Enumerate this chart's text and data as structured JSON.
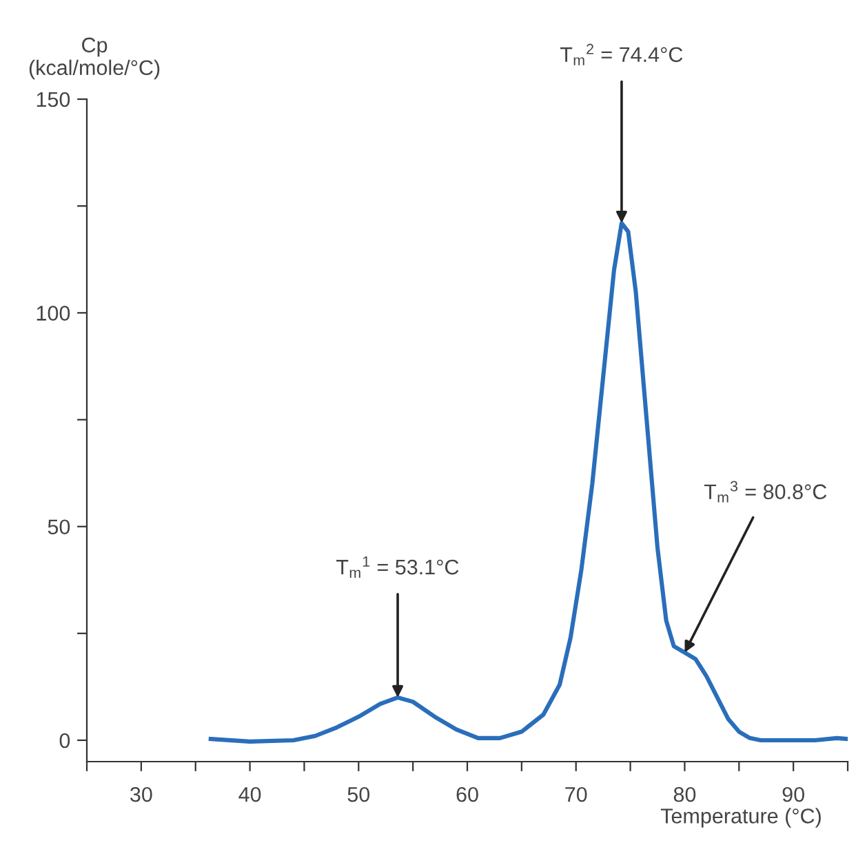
{
  "chart_data": {
    "type": "line",
    "xlabel": "Temperature (°C)",
    "ylabel": "Cp\n(kcal/mole/°C)",
    "x": [
      36.4,
      40,
      44,
      46,
      48,
      50,
      52,
      53.6,
      55,
      57,
      59,
      61,
      63,
      65,
      67,
      68.5,
      69.5,
      70.5,
      71.5,
      72.5,
      73.5,
      74.2,
      74.8,
      75.5,
      76.5,
      77.5,
      78.3,
      79,
      80,
      81,
      82,
      83,
      84,
      85,
      86,
      87,
      88,
      90,
      92,
      94,
      95
    ],
    "series": [
      {
        "color": "#2a6ebb",
        "values": [
          0.3,
          -0.3,
          0,
          1,
          3,
          5.5,
          8.5,
          10,
          9,
          5.5,
          2.5,
          0.5,
          0.5,
          2,
          6,
          13,
          24,
          40,
          60,
          85,
          110,
          121,
          119,
          105,
          75,
          45,
          28,
          22,
          20.5,
          19,
          15,
          10,
          5,
          2,
          0.5,
          0,
          0,
          0,
          0,
          0.5,
          0.3
        ]
      }
    ],
    "xlim": [
      25,
      95
    ],
    "ylim": [
      -5,
      150
    ],
    "xticks": [
      {
        "value": 25,
        "label": null
      },
      30,
      {
        "value": 35,
        "label": null
      },
      40,
      {
        "value": 45,
        "label": null
      },
      50,
      {
        "value": 55,
        "label": null
      },
      60,
      {
        "value": 65,
        "label": null
      },
      70,
      {
        "value": 75,
        "label": null
      },
      80,
      {
        "value": 85,
        "label": null
      },
      90,
      {
        "value": 95,
        "label": null
      }
    ],
    "yticks": [
      0,
      {
        "value": 25,
        "label": null
      },
      50,
      {
        "value": 75,
        "label": null
      },
      100,
      {
        "value": 125,
        "label": null
      },
      150
    ],
    "annotations": [
      {
        "text": "T$_{m}$$^{1}$ = 53.1°C",
        "x": 53.6,
        "y": 10
      },
      {
        "text": "T$_{m}$$^{2}$ = 74.4°C",
        "x": 74.2,
        "y": 121
      },
      {
        "text": "T$_{m}$$^{3}$ = 80.8°C",
        "x": 80,
        "y": 20.5
      }
    ],
    "grid": false,
    "legend": false,
    "marker": "none",
    "line_style": "solid"
  }
}
